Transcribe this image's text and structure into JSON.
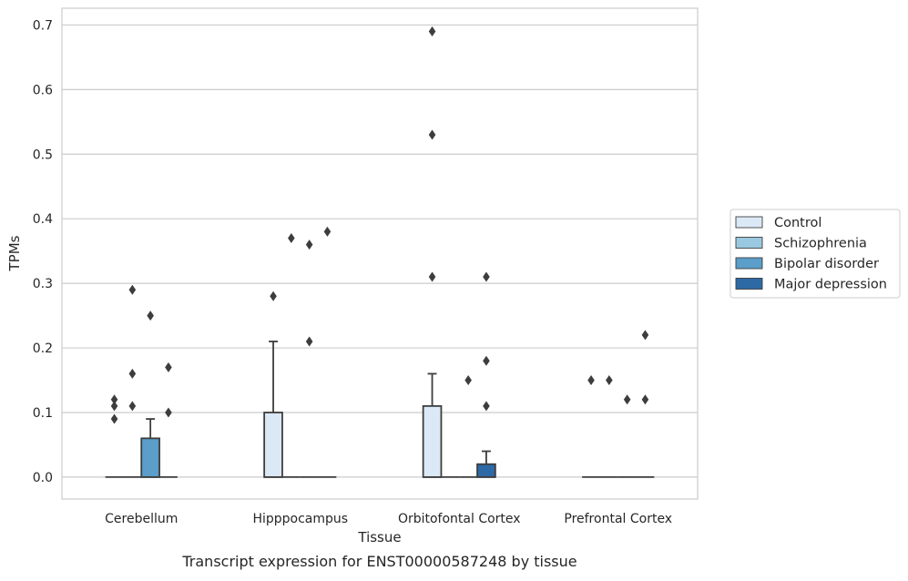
{
  "chart_data": {
    "type": "box",
    "title": "",
    "caption": "Transcript expression for ENST00000587248 by tissue",
    "xlabel": "Tissue",
    "ylabel": "TPMs",
    "ylim": [
      -0.034,
      0.726
    ],
    "yticks": [
      0.0,
      0.1,
      0.2,
      0.3,
      0.4,
      0.5,
      0.6,
      0.7
    ],
    "ytick_labels": [
      "0.0",
      "0.1",
      "0.2",
      "0.3",
      "0.4",
      "0.5",
      "0.6",
      "0.7"
    ],
    "grid": "horizontal",
    "legend_position": "right",
    "categories": [
      "Cerebellum",
      "Hipppocampus",
      "Orbitofontal Cortex",
      "Prefrontal Cortex"
    ],
    "series": [
      {
        "name": "Control",
        "color": "#dbe9f6",
        "boxes": [
          {
            "q1": 0,
            "median": 0,
            "q3": 0,
            "whisker_low": 0,
            "whisker_high": 0,
            "outliers": [
              0.09,
              0.11,
              0.12
            ]
          },
          {
            "q1": 0,
            "median": 0,
            "q3": 0.1,
            "whisker_low": 0,
            "whisker_high": 0.21,
            "outliers": [
              0.28
            ]
          },
          {
            "q1": 0,
            "median": 0,
            "q3": 0.11,
            "whisker_low": 0,
            "whisker_high": 0.16,
            "outliers": [
              0.31,
              0.53,
              0.69
            ]
          },
          {
            "q1": 0,
            "median": 0,
            "q3": 0,
            "whisker_low": 0,
            "whisker_high": 0,
            "outliers": [
              0.15
            ]
          }
        ]
      },
      {
        "name": "Schizophrenia",
        "color": "#9ac8e0",
        "boxes": [
          {
            "q1": 0,
            "median": 0,
            "q3": 0,
            "whisker_low": 0,
            "whisker_high": 0,
            "outliers": [
              0.11,
              0.16,
              0.29
            ]
          },
          {
            "q1": 0,
            "median": 0,
            "q3": 0,
            "whisker_low": 0,
            "whisker_high": 0,
            "outliers": [
              0.37
            ]
          },
          {
            "q1": 0,
            "median": 0,
            "q3": 0,
            "whisker_low": 0,
            "whisker_high": 0,
            "outliers": []
          },
          {
            "q1": 0,
            "median": 0,
            "q3": 0,
            "whisker_low": 0,
            "whisker_high": 0,
            "outliers": [
              0.15
            ]
          }
        ]
      },
      {
        "name": "Bipolar disorder",
        "color": "#5a9ec9",
        "boxes": [
          {
            "q1": 0,
            "median": 0,
            "q3": 0.06,
            "whisker_low": 0,
            "whisker_high": 0.09,
            "outliers": [
              0.25
            ]
          },
          {
            "q1": 0,
            "median": 0,
            "q3": 0,
            "whisker_low": 0,
            "whisker_high": 0,
            "outliers": [
              0.21,
              0.36
            ]
          },
          {
            "q1": 0,
            "median": 0,
            "q3": 0,
            "whisker_low": 0,
            "whisker_high": 0,
            "outliers": [
              0.15
            ]
          },
          {
            "q1": 0,
            "median": 0,
            "q3": 0,
            "whisker_low": 0,
            "whisker_high": 0,
            "outliers": [
              0.12
            ]
          }
        ]
      },
      {
        "name": "Major depression",
        "color": "#2d69a5",
        "boxes": [
          {
            "q1": 0,
            "median": 0,
            "q3": 0,
            "whisker_low": 0,
            "whisker_high": 0,
            "outliers": [
              0.1,
              0.17
            ]
          },
          {
            "q1": 0,
            "median": 0,
            "q3": 0,
            "whisker_low": 0,
            "whisker_high": 0,
            "outliers": [
              0.38
            ]
          },
          {
            "q1": 0,
            "median": 0,
            "q3": 0.02,
            "whisker_low": 0,
            "whisker_high": 0.04,
            "outliers": [
              0.11,
              0.18,
              0.31
            ]
          },
          {
            "q1": 0,
            "median": 0,
            "q3": 0,
            "whisker_low": 0,
            "whisker_high": 0,
            "outliers": [
              0.12,
              0.22
            ]
          }
        ]
      }
    ]
  }
}
